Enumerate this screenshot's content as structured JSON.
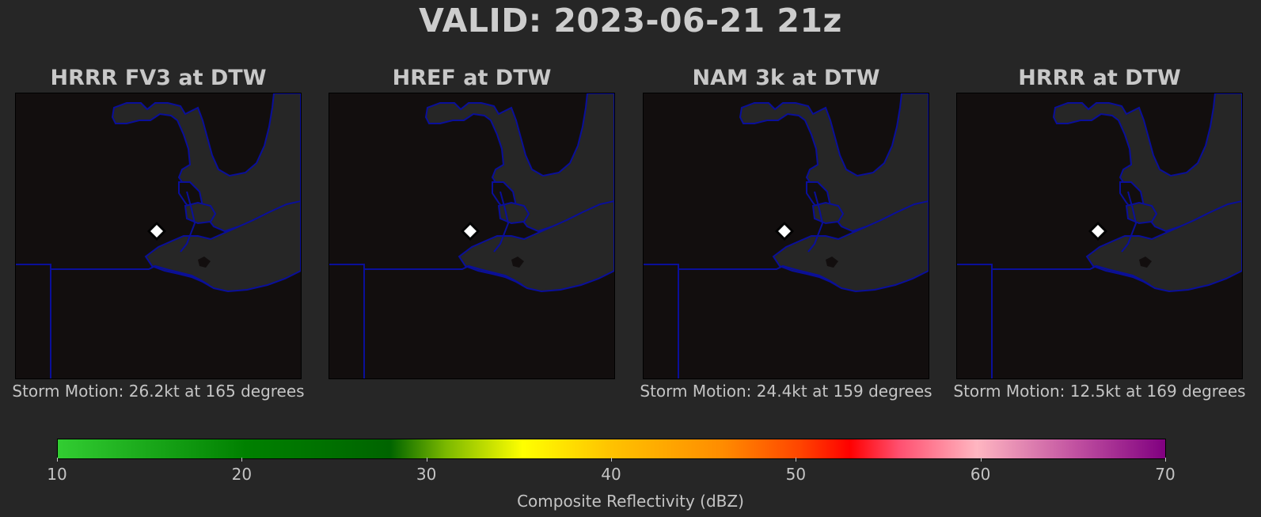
{
  "title": "VALID: 2023-06-21 21z",
  "colors": {
    "background": "#262626",
    "map_land": "#120e0e",
    "map_water": "#262626",
    "boundary": "#0a0f9a",
    "marker": "#ffffff"
  },
  "panels": [
    {
      "id": "hrrr-fv3",
      "title": "HRRR FV3 at DTW",
      "motion": "Storm Motion: 26.2kt at 165 degrees"
    },
    {
      "id": "href",
      "title": "HREF at DTW",
      "motion": ""
    },
    {
      "id": "nam-3k",
      "title": "NAM 3k at DTW",
      "motion": "Storm Motion: 24.4kt at 159 degrees"
    },
    {
      "id": "hrrr",
      "title": "HRRR at DTW",
      "motion": "Storm Motion: 12.5kt at 169 degrees"
    }
  ],
  "station": {
    "name": "DTW",
    "marker_icon": "diamond-marker-icon"
  },
  "colorbar": {
    "label": "Composite Reflectivity (dBZ)",
    "min": 10,
    "max": 70,
    "ticks": [
      "10",
      "20",
      "30",
      "40",
      "50",
      "60",
      "70"
    ],
    "stops": [
      {
        "dbz": 10,
        "color": "#32cd32"
      },
      {
        "dbz": 20,
        "color": "#008000"
      },
      {
        "dbz": 28,
        "color": "#006400"
      },
      {
        "dbz": 35,
        "color": "#ffff00"
      },
      {
        "dbz": 40,
        "color": "#ffc200"
      },
      {
        "dbz": 46,
        "color": "#ff8c00"
      },
      {
        "dbz": 50,
        "color": "#ff4500"
      },
      {
        "dbz": 53,
        "color": "#ff0000"
      },
      {
        "dbz": 60,
        "color": "#ffb6c1"
      },
      {
        "dbz": 70,
        "color": "#800080"
      }
    ]
  }
}
